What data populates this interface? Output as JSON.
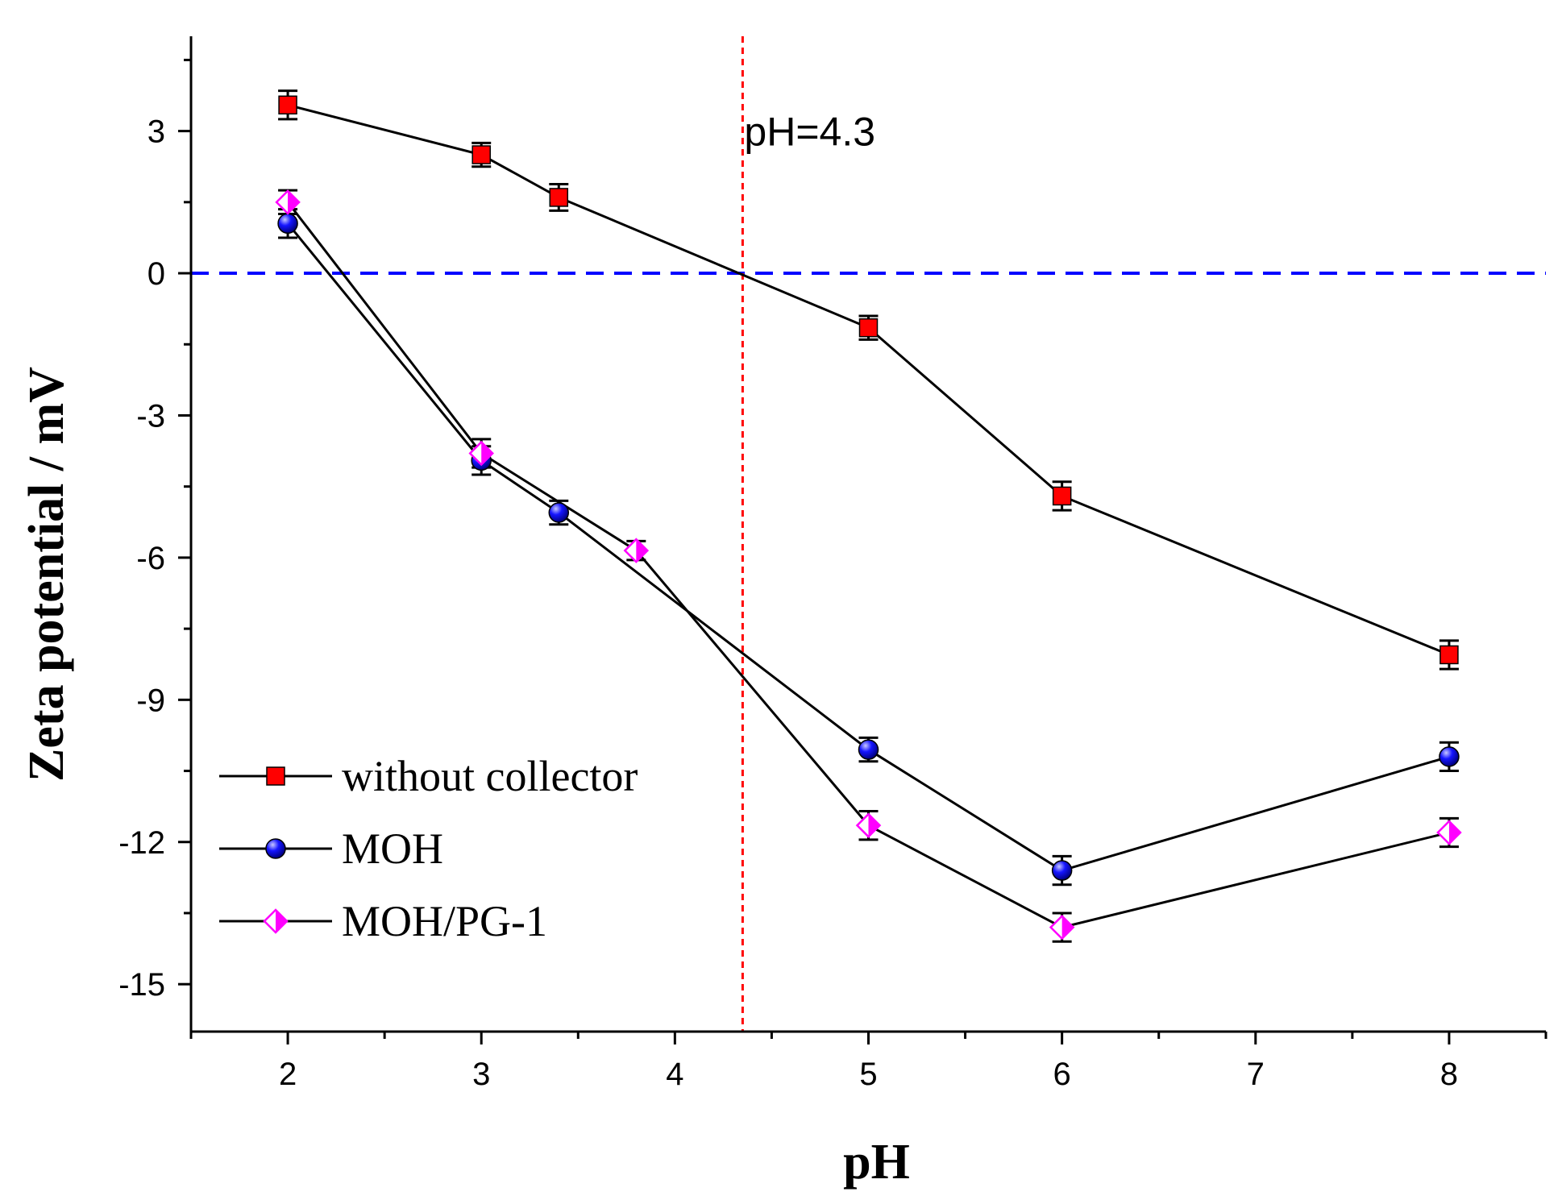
{
  "chart_data": {
    "type": "line",
    "title": "",
    "xlabel": "pH",
    "ylabel": "Zeta potential / mV",
    "xlim": [
      1.5,
      8.5
    ],
    "ylim": [
      -16.0,
      5.0
    ],
    "xticks": [
      2,
      3,
      4,
      5,
      6,
      7,
      8
    ],
    "xtick_labels": [
      "2",
      "3",
      "4",
      "5",
      "6",
      "7",
      "8"
    ],
    "yticks": [
      3,
      0,
      -3,
      -6,
      -9,
      -12,
      -15
    ],
    "ytick_labels": [
      "3",
      "0",
      "-3",
      "-6",
      "-9",
      "-12",
      "-15"
    ],
    "legend_position": "bottom-left",
    "series": [
      {
        "name": "without collector",
        "marker": "square",
        "color": "#ff0000",
        "x": [
          2,
          3,
          3.4,
          5,
          6,
          8
        ],
        "y": [
          3.55,
          2.5,
          1.6,
          -1.15,
          -4.7,
          -8.05
        ],
        "err": [
          0.3,
          0.25,
          0.28,
          0.25,
          0.3,
          0.3
        ]
      },
      {
        "name": "MOH",
        "marker": "circle",
        "color": "#1515ff",
        "x": [
          2,
          3,
          3.4,
          5,
          6,
          8
        ],
        "y": [
          1.05,
          -3.95,
          -5.05,
          -10.05,
          -12.6,
          -10.2
        ],
        "err": [
          0.3,
          0.3,
          0.25,
          0.25,
          0.3,
          0.3
        ]
      },
      {
        "name": "MOH/PG-1",
        "marker": "diamond",
        "color": "#ff00ff",
        "x": [
          2,
          3,
          3.8,
          5,
          6,
          8
        ],
        "y": [
          1.5,
          -3.8,
          -5.85,
          -11.65,
          -13.8,
          -11.8
        ],
        "err": [
          0.25,
          0.3,
          0.2,
          0.3,
          0.3,
          0.3
        ]
      }
    ],
    "reference_lines": [
      {
        "orientation": "horizontal",
        "value": 0,
        "color": "#0000ff",
        "style": "dashed"
      },
      {
        "orientation": "vertical",
        "value": 4.35,
        "color": "#ff0000",
        "style": "dotted"
      }
    ],
    "annotations": [
      {
        "text": "pH=4.3",
        "x": 4.4,
        "y": 3.0
      }
    ]
  }
}
